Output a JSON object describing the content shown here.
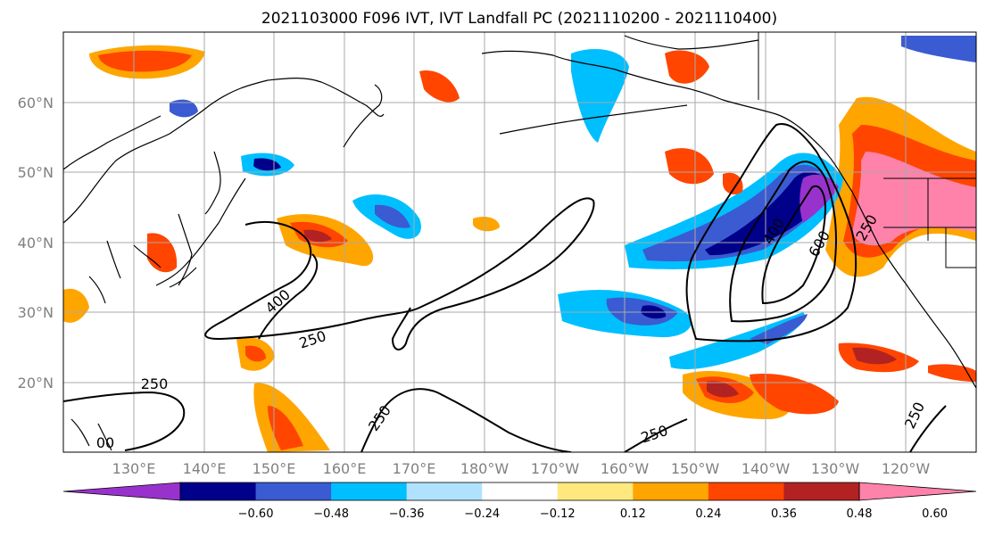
{
  "title": "2021103000 F096 IVT, IVT Landfall PC (2021110200 - 2021110400)",
  "axes": {
    "lat_ticks": [
      "60°N",
      "50°N",
      "40°N",
      "30°N",
      "20°N"
    ],
    "lon_ticks": [
      "130°E",
      "140°E",
      "150°E",
      "160°E",
      "170°E",
      "180°W",
      "170°W",
      "160°W",
      "150°W",
      "140°W",
      "130°W",
      "120°W"
    ]
  },
  "colorbar": {
    "colors": [
      "#9932CC",
      "#00008B",
      "#3A5BD1",
      "#00BFFF",
      "#B0E2FF",
      "#FFFFFF",
      "#FFE97F",
      "#FFA500",
      "#FF4500",
      "#B22222",
      "#FF82AB"
    ],
    "tick_labels": [
      "−0.60",
      "−0.48",
      "−0.36",
      "−0.24",
      "−0.12",
      "0.12",
      "0.24",
      "0.36",
      "0.48",
      "0.60"
    ]
  },
  "contour_labels": [
    "400",
    "250",
    "250",
    "250",
    "250",
    "00",
    "400",
    "600",
    "250",
    "250"
  ],
  "chart_data": {
    "type": "map",
    "title": "2021103000 F096 IVT, IVT Landfall PC (2021110200 - 2021110400)",
    "xlim": [
      "120°E",
      "110°W"
    ],
    "ylim": [
      "10°N",
      "70°N"
    ],
    "contour_levels": [
      250,
      400,
      600
    ],
    "color_levels": [
      -0.6,
      -0.48,
      -0.36,
      -0.24,
      -0.12,
      0.12,
      0.24,
      0.36,
      0.48,
      0.6
    ],
    "grid": true
  }
}
